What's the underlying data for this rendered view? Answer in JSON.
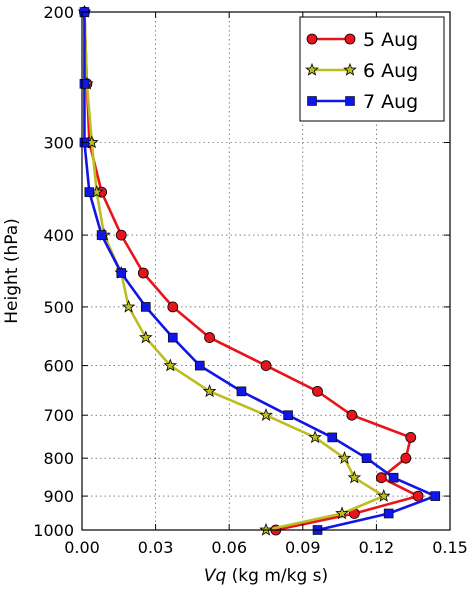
{
  "chart_data": {
    "type": "line",
    "xlabel_var": "Vq",
    "xlabel_units": " (kg m/kg s)",
    "ylabel": "Height (hPa)",
    "xlim": [
      0,
      0.15
    ],
    "ylim": [
      200,
      1000
    ],
    "y_scale": "log",
    "y_inverted": true,
    "grid": true,
    "legend_position": "top-right",
    "xticks": [
      {
        "value": 0.0,
        "label": "0.00"
      },
      {
        "value": 0.03,
        "label": "0.03"
      },
      {
        "value": 0.06,
        "label": "0.06"
      },
      {
        "value": 0.09,
        "label": "0.09"
      },
      {
        "value": 0.12,
        "label": "0.12"
      },
      {
        "value": 0.15,
        "label": "0.15"
      }
    ],
    "yticks": [
      {
        "value": 200,
        "label": "200"
      },
      {
        "value": 300,
        "label": "300"
      },
      {
        "value": 400,
        "label": "400"
      },
      {
        "value": 500,
        "label": "500"
      },
      {
        "value": 600,
        "label": "600"
      },
      {
        "value": 700,
        "label": "700"
      },
      {
        "value": 800,
        "label": "800"
      },
      {
        "value": 900,
        "label": "900"
      },
      {
        "value": 1000,
        "label": "1000"
      }
    ],
    "series": [
      {
        "name": "5 Aug",
        "color": "#e8141b",
        "marker": "circle",
        "points": [
          {
            "x": 0.001,
            "y": 200
          },
          {
            "x": 0.002,
            "y": 250
          },
          {
            "x": 0.003,
            "y": 300
          },
          {
            "x": 0.008,
            "y": 350
          },
          {
            "x": 0.016,
            "y": 400
          },
          {
            "x": 0.025,
            "y": 450
          },
          {
            "x": 0.037,
            "y": 500
          },
          {
            "x": 0.052,
            "y": 550
          },
          {
            "x": 0.075,
            "y": 600
          },
          {
            "x": 0.096,
            "y": 650
          },
          {
            "x": 0.11,
            "y": 700
          },
          {
            "x": 0.134,
            "y": 750
          },
          {
            "x": 0.132,
            "y": 800
          },
          {
            "x": 0.122,
            "y": 850
          },
          {
            "x": 0.137,
            "y": 900
          },
          {
            "x": 0.111,
            "y": 950
          },
          {
            "x": 0.079,
            "y": 1000
          }
        ]
      },
      {
        "name": "6 Aug",
        "color": "#bdbd21",
        "marker": "star",
        "points": [
          {
            "x": 0.001,
            "y": 200
          },
          {
            "x": 0.002,
            "y": 250
          },
          {
            "x": 0.004,
            "y": 300
          },
          {
            "x": 0.006,
            "y": 350
          },
          {
            "x": 0.009,
            "y": 400
          },
          {
            "x": 0.016,
            "y": 450
          },
          {
            "x": 0.019,
            "y": 500
          },
          {
            "x": 0.026,
            "y": 550
          },
          {
            "x": 0.036,
            "y": 600
          },
          {
            "x": 0.052,
            "y": 650
          },
          {
            "x": 0.075,
            "y": 700
          },
          {
            "x": 0.095,
            "y": 750
          },
          {
            "x": 0.107,
            "y": 800
          },
          {
            "x": 0.111,
            "y": 850
          },
          {
            "x": 0.123,
            "y": 900
          },
          {
            "x": 0.106,
            "y": 950
          },
          {
            "x": 0.075,
            "y": 1000
          }
        ]
      },
      {
        "name": "7 Aug",
        "color": "#1015e8",
        "marker": "square",
        "points": [
          {
            "x": 0.001,
            "y": 200
          },
          {
            "x": 0.001,
            "y": 250
          },
          {
            "x": 0.001,
            "y": 300
          },
          {
            "x": 0.003,
            "y": 350
          },
          {
            "x": 0.008,
            "y": 400
          },
          {
            "x": 0.016,
            "y": 450
          },
          {
            "x": 0.026,
            "y": 500
          },
          {
            "x": 0.037,
            "y": 550
          },
          {
            "x": 0.048,
            "y": 600
          },
          {
            "x": 0.065,
            "y": 650
          },
          {
            "x": 0.084,
            "y": 700
          },
          {
            "x": 0.102,
            "y": 750
          },
          {
            "x": 0.116,
            "y": 800
          },
          {
            "x": 0.127,
            "y": 850
          },
          {
            "x": 0.144,
            "y": 900
          },
          {
            "x": 0.125,
            "y": 950
          },
          {
            "x": 0.096,
            "y": 1000
          }
        ]
      }
    ]
  }
}
